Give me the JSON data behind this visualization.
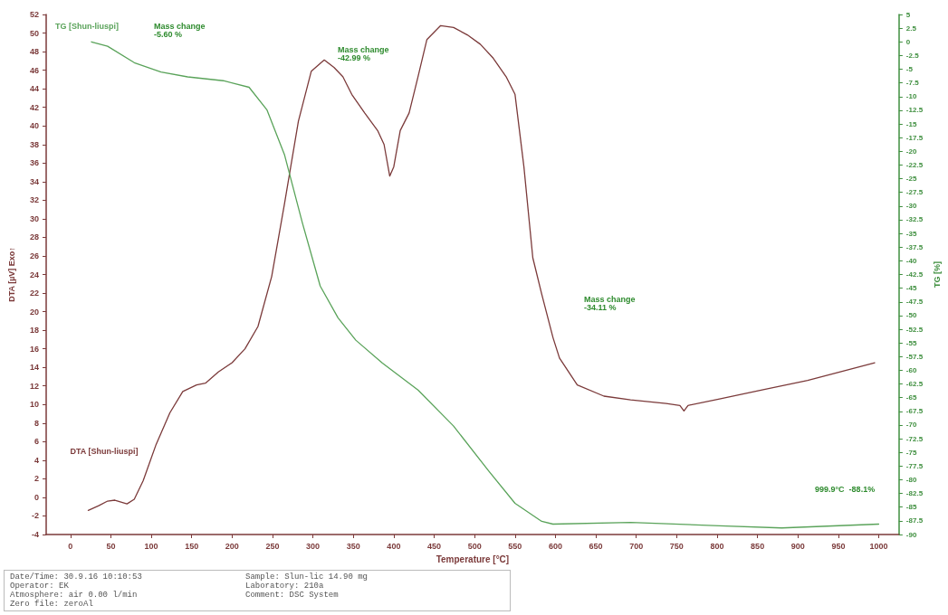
{
  "chart_data": {
    "type": "line",
    "xlabel": "Temperature [°C]",
    "ylabel": "DTA [µV] Exo↑",
    "y2label": "TG [%]",
    "xlim": [
      -30,
      1025
    ],
    "xticks": [
      0,
      50,
      100,
      150,
      200,
      250,
      300,
      350,
      400,
      450,
      500,
      550,
      600,
      650,
      700,
      750,
      800,
      850,
      900,
      950,
      1000
    ],
    "ylim": [
      -4,
      52
    ],
    "yticks": [
      -4,
      -2,
      0,
      2,
      4,
      6,
      8,
      10,
      12,
      14,
      16,
      18,
      20,
      22,
      24,
      26,
      28,
      30,
      32,
      34,
      36,
      38,
      40,
      42,
      44,
      46,
      48,
      50,
      52
    ],
    "y2lim": [
      -90,
      5
    ],
    "y2ticks": [
      5,
      2.5,
      0,
      -2.5,
      -5,
      -7.5,
      -10,
      -12.5,
      -15,
      -17.5,
      -20,
      -22.5,
      -25,
      -27.5,
      -30,
      -32.5,
      -35,
      -37.5,
      -40,
      -42.5,
      -45,
      -47.5,
      -50,
      -52.5,
      -55,
      -57.5,
      -60,
      -62.5,
      -65,
      -67.5,
      -70,
      -72.5,
      -75,
      -77.5,
      -80,
      -82.5,
      -85,
      -87.5,
      -90
    ],
    "grid": false,
    "legend": false,
    "marker": "none",
    "line_style": "solid",
    "series": [
      {
        "name": "DTA [Shun-liuspi]",
        "color": "#7b3a3a",
        "x": [
          22,
          35,
          46,
          55,
          62.5,
          70,
          79,
          90,
          106,
          123,
          139,
          156,
          167,
          183,
          200,
          216,
          232,
          249,
          265,
          282,
          298,
          314,
          326,
          337,
          348,
          364,
          380,
          388,
          395,
          400,
          408,
          419,
          430,
          441,
          458,
          474,
          491,
          507,
          523,
          539,
          550,
          561,
          572,
          583,
          597,
          605,
          627,
          660,
          693,
          737,
          754,
          759,
          764,
          803,
          857,
          912,
          995
        ],
        "values": [
          -1.4,
          -0.9,
          -0.4,
          -0.3,
          -0.5,
          -0.7,
          -0.2,
          1.8,
          5.7,
          9.1,
          11.4,
          12.1,
          12.3,
          13.5,
          14.5,
          16,
          18.4,
          23.8,
          31.7,
          40.5,
          45.9,
          47.1,
          46.3,
          45.3,
          43.4,
          41.4,
          39.5,
          38,
          34.6,
          35.6,
          39.5,
          41.4,
          45.3,
          49.3,
          50.8,
          50.6,
          49.8,
          48.8,
          47.3,
          45.3,
          43.4,
          35.6,
          25.8,
          21.9,
          17.2,
          15,
          12.1,
          10.9,
          10.5,
          10.1,
          9.9,
          9.3,
          9.9,
          10.6,
          11.6,
          12.6,
          14.5
        ]
      },
      {
        "name": "TG [Shun-liuspi]",
        "color": "#5aa35a",
        "axis": "y2",
        "x": [
          26,
          46,
          79,
          112,
          145,
          189,
          221,
          243,
          265,
          287,
          309,
          331,
          353,
          386,
          430,
          474,
          518,
          550,
          583,
          597,
          693,
          803,
          880,
          999.9
        ],
        "values": [
          0,
          -0.8,
          -3.8,
          -5.5,
          -6.4,
          -7.1,
          -8.3,
          -12.4,
          -20.7,
          -33.1,
          -44.6,
          -50.4,
          -54.5,
          -58.7,
          -63.6,
          -70.2,
          -78.5,
          -84.3,
          -87.6,
          -88.1,
          -87.8,
          -88.4,
          -88.8,
          -88.1
        ]
      }
    ],
    "annotations": [
      "Mass change\n-5.60 %",
      "Mass change\n-42.99 %",
      "Mass change\n-34.11 %",
      "999.9°C  -88.1%",
      "Date/Time:  30.9.16   10:10:53",
      "Sample:  Slun-lic   14.90 mg",
      "Operator:  EK",
      "Laboratory:  210a",
      "Atmosphere:  air   0.00 l/min",
      "Comment:  DSC System",
      "Zero file:  zeroAl"
    ]
  }
}
